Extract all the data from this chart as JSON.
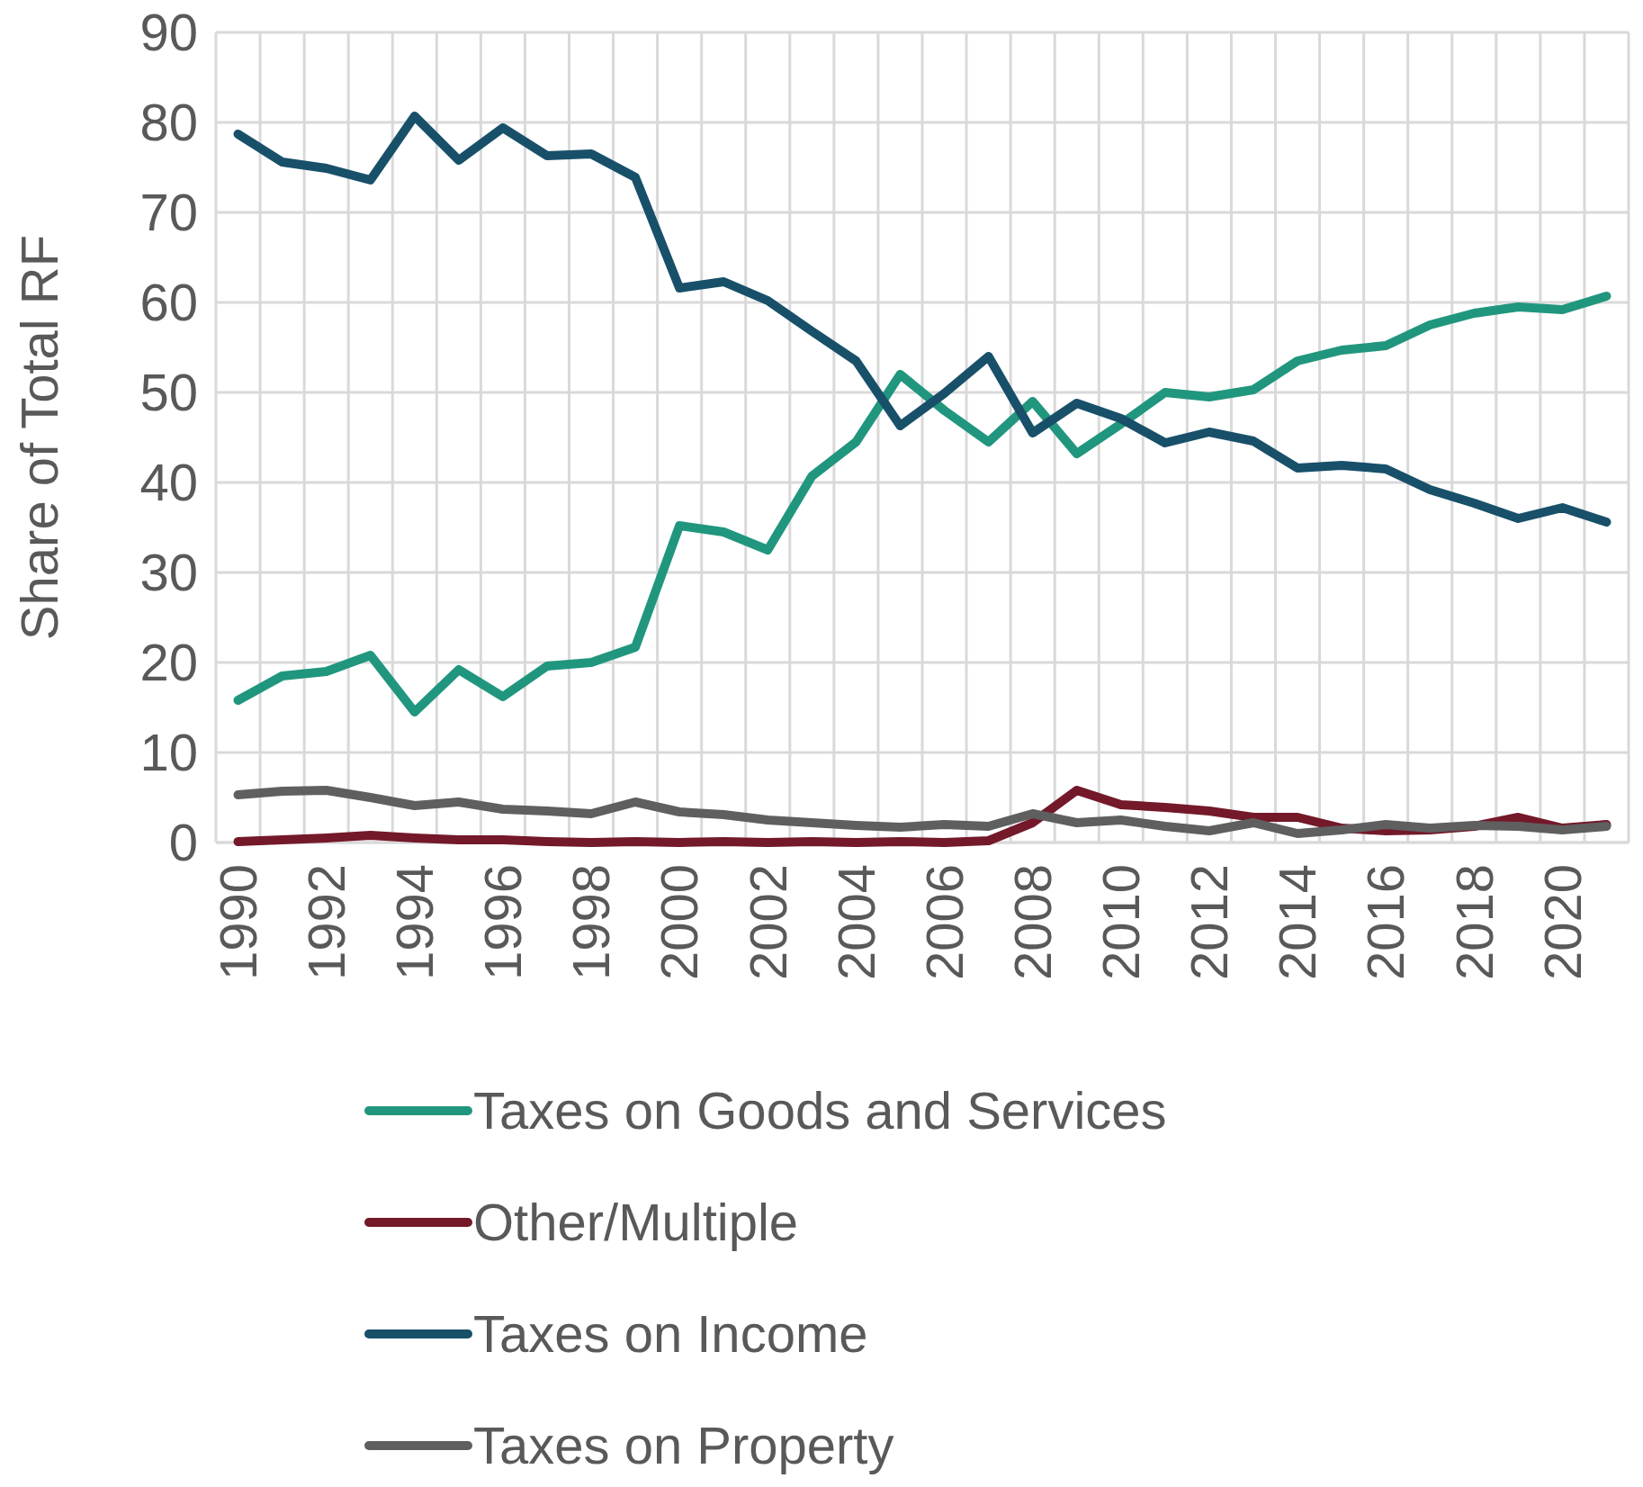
{
  "chart_data": {
    "type": "line",
    "ylabel": "Share of Total RF",
    "categories": [
      "1990",
      null,
      "1992",
      null,
      "1994",
      null,
      "1996",
      null,
      "1998",
      null,
      "2000",
      null,
      "2002",
      null,
      "2004",
      null,
      "2006",
      null,
      "2008",
      null,
      "2010",
      null,
      "2012",
      null,
      "2014",
      null,
      "2016",
      null,
      "2018",
      null,
      "2020",
      null
    ],
    "series": [
      {
        "name": "Taxes on Goods and Services",
        "color": "#21967e",
        "values": [
          15.8,
          18.5,
          19,
          20.8,
          14.5,
          19.2,
          16.2,
          19.6,
          20,
          21.7,
          35.2,
          34.5,
          32.5,
          40.7,
          44.5,
          52,
          48,
          44.5,
          49,
          43.2,
          46.5,
          50,
          49.5,
          50.3,
          53.5,
          54.7,
          55.2,
          57.5,
          58.8,
          59.5,
          59.2,
          60.7
        ]
      },
      {
        "name": "Other/Multiple",
        "color": "#73192a",
        "values": [
          0.1,
          0.3,
          0.5,
          0.8,
          0.5,
          0.3,
          0.3,
          0.1,
          0,
          0.1,
          0,
          0.1,
          0,
          0.1,
          0,
          0.1,
          0,
          0.2,
          2.2,
          5.8,
          4.2,
          3.9,
          3.5,
          2.8,
          2.8,
          1.6,
          1.3,
          1.4,
          1.8,
          2.8,
          1.6,
          2.0
        ]
      },
      {
        "name": "Taxes on Income",
        "color": "#18506a",
        "values": [
          78.7,
          75.6,
          74.9,
          73.6,
          80.7,
          75.8,
          79.4,
          76.3,
          76.5,
          73.9,
          61.6,
          62.3,
          60.2,
          56.8,
          53.5,
          46.3,
          49.9,
          54,
          45.5,
          48.8,
          47.1,
          44.4,
          45.6,
          44.6,
          41.6,
          41.9,
          41.5,
          39.2,
          37.7,
          36,
          37.2,
          35.6
        ]
      },
      {
        "name": "Taxes on Property",
        "color": "#5f5f5f",
        "values": [
          5.3,
          5.7,
          5.8,
          5,
          4.1,
          4.5,
          3.7,
          3.5,
          3.2,
          4.5,
          3.4,
          3.1,
          2.5,
          2.2,
          1.9,
          1.7,
          2,
          1.8,
          3.2,
          2.2,
          2.5,
          1.8,
          1.3,
          2.2,
          1,
          1.4,
          2,
          1.6,
          1.9,
          1.8,
          1.4,
          1.8
        ]
      }
    ],
    "ylim": [
      0,
      90
    ],
    "yticks": [
      0,
      10,
      20,
      30,
      40,
      50,
      60,
      70,
      80,
      90
    ],
    "grid": true,
    "legend": "bottom",
    "marker": "none",
    "line_style": "solid"
  }
}
